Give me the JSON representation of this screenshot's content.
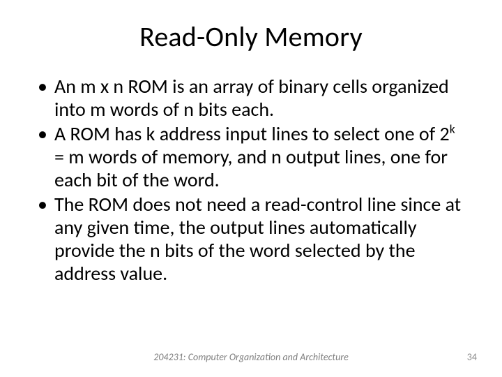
{
  "title": "Read-Only Memory",
  "bullets": [
    {
      "parts": [
        {
          "text": "An m x n ROM is an array of binary cells organized into m words of n bits each."
        }
      ]
    },
    {
      "parts": [
        {
          "text": "A ROM has k address input lines to select one of 2"
        },
        {
          "text": "k",
          "sup": true
        },
        {
          "text": " = m words of memory, and n output lines, one for each bit of the word."
        }
      ]
    },
    {
      "parts": [
        {
          "text": "The ROM does not need a read-control line since at any given time, the output lines automatically provide the n bits of the word selected by the address value."
        }
      ]
    }
  ],
  "footer": "204231: Computer Organization and Architecture",
  "page_number": "34",
  "colors": {
    "text": "#000000",
    "footer": "#7f7f7f",
    "pagenum": "#8a8a8a",
    "background": "#ffffff"
  },
  "typography": {
    "title_fontsize": 40,
    "body_fontsize": 28,
    "footer_fontsize": 14,
    "font_family": "Calibri"
  }
}
